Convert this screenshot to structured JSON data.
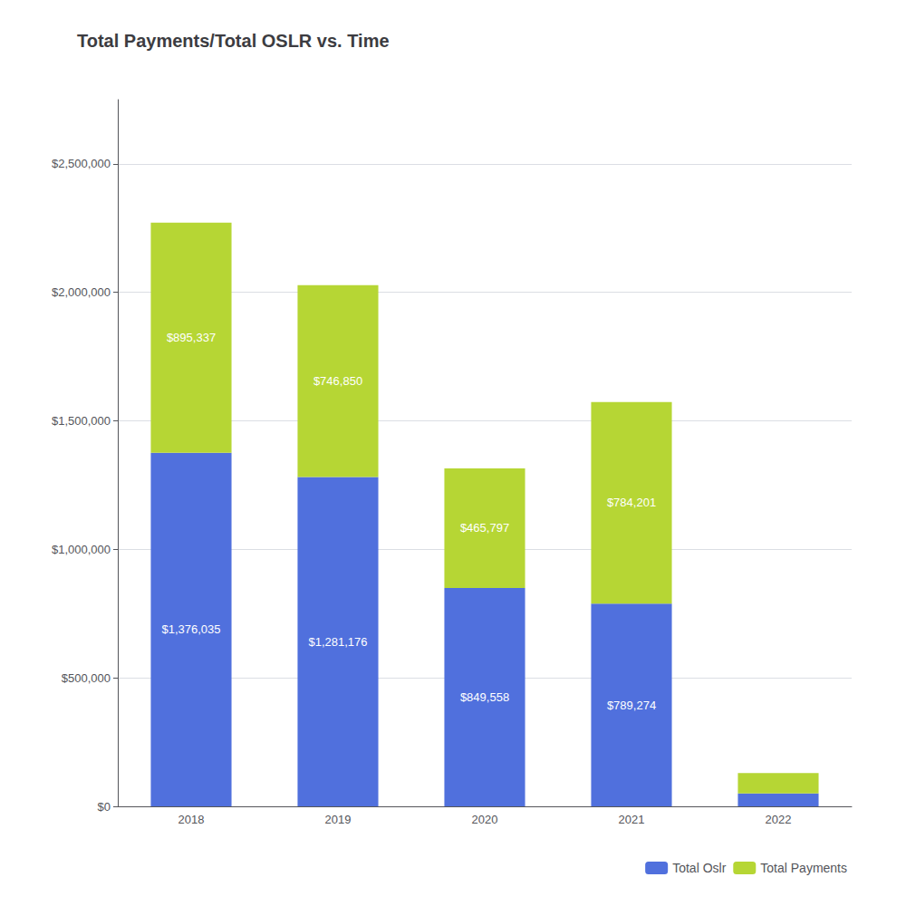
{
  "chart_data": {
    "type": "bar",
    "title": "Total Payments/Total OSLR vs. Time",
    "categories": [
      "2018",
      "2019",
      "2020",
      "2021",
      "2022"
    ],
    "series": [
      {
        "name": "Total Oslr",
        "values": [
          1376035,
          1281176,
          849558,
          789274,
          50000
        ],
        "value_labels": [
          "$1,376,035",
          "$1,281,176",
          "$849,558",
          "$789,274",
          null
        ]
      },
      {
        "name": "Total Payments",
        "values": [
          895337,
          746850,
          465797,
          784201,
          80000
        ],
        "value_labels": [
          "$895,337",
          "$746,850",
          "$465,797",
          "$784,201",
          null
        ]
      }
    ],
    "stacked": true,
    "data_labels": true,
    "ylim": [
      0,
      2750000
    ],
    "yticks": [
      {
        "value": 0,
        "label": "$0"
      },
      {
        "value": 500000,
        "label": "$500,000"
      },
      {
        "value": 1000000,
        "label": "$1,000,000"
      },
      {
        "value": 1500000,
        "label": "$1,500,000"
      },
      {
        "value": 2000000,
        "label": "$2,000,000"
      },
      {
        "value": 2500000,
        "label": "$2,500,000"
      }
    ],
    "grid": true,
    "legend": "lower right"
  }
}
